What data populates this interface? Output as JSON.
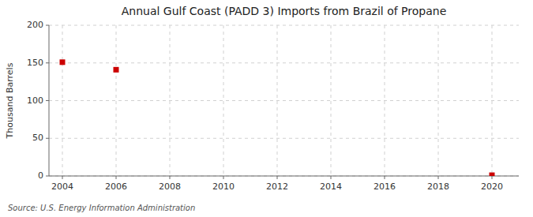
{
  "chart_data": {
    "type": "scatter",
    "title": "Annual Gulf Coast (PADD 3) Imports from Brazil of Propane",
    "ylabel": "Thousand Barrels",
    "source": "Source: U.S. Energy Information Administration",
    "x": [
      2004,
      2006,
      2020
    ],
    "values": [
      151,
      141,
      1
    ],
    "color": "#cc0000",
    "marker": "square",
    "xlim": [
      2003.5,
      2021
    ],
    "ylim": [
      0,
      200
    ],
    "xticks": [
      2004,
      2006,
      2008,
      2010,
      2012,
      2014,
      2016,
      2018,
      2020
    ],
    "yticks": [
      0,
      50,
      100,
      150,
      200
    ],
    "grid": true
  }
}
